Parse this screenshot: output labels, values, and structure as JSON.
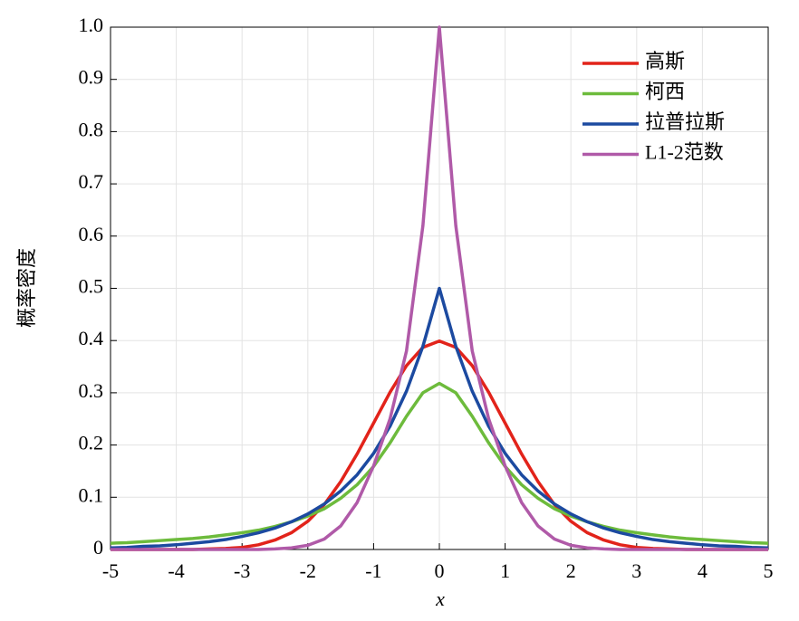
{
  "chart_data": {
    "type": "line",
    "x_label": "x",
    "y_label": "概率密度",
    "x": [
      -5,
      -4.75,
      -4.5,
      -4.25,
      -4,
      -3.75,
      -3.5,
      -3.25,
      -3,
      -2.75,
      -2.5,
      -2.25,
      -2,
      -1.75,
      -1.5,
      -1.25,
      -1,
      -0.75,
      -0.5,
      -0.25,
      0,
      0.25,
      0.5,
      0.75,
      1,
      1.25,
      1.5,
      1.75,
      2,
      2.25,
      2.5,
      2.75,
      3,
      3.25,
      3.5,
      3.75,
      4,
      4.25,
      4.5,
      4.75,
      5
    ],
    "series": [
      {
        "name": "高斯",
        "color": "#e2231a",
        "values": [
          0,
          0,
          0,
          0,
          0,
          0,
          0.001,
          0.002,
          0.004,
          0.009,
          0.018,
          0.032,
          0.054,
          0.086,
          0.13,
          0.183,
          0.242,
          0.301,
          0.352,
          0.387,
          0.399,
          0.387,
          0.352,
          0.301,
          0.242,
          0.183,
          0.13,
          0.086,
          0.054,
          0.032,
          0.018,
          0.009,
          0.004,
          0.002,
          0.001,
          0,
          0,
          0,
          0,
          0,
          0
        ]
      },
      {
        "name": "柯西",
        "color": "#6dbb3c",
        "values": [
          0.012,
          0.013,
          0.015,
          0.017,
          0.019,
          0.021,
          0.024,
          0.028,
          0.032,
          0.037,
          0.044,
          0.053,
          0.064,
          0.078,
          0.098,
          0.124,
          0.159,
          0.204,
          0.255,
          0.3,
          0.318,
          0.3,
          0.255,
          0.204,
          0.159,
          0.124,
          0.098,
          0.078,
          0.064,
          0.053,
          0.044,
          0.037,
          0.032,
          0.028,
          0.024,
          0.021,
          0.019,
          0.017,
          0.015,
          0.013,
          0.012
        ]
      },
      {
        "name": "拉普拉斯",
        "color": "#1c4aa0",
        "values": [
          0.003,
          0.004,
          0.006,
          0.007,
          0.009,
          0.012,
          0.015,
          0.019,
          0.025,
          0.032,
          0.041,
          0.053,
          0.068,
          0.087,
          0.112,
          0.143,
          0.184,
          0.236,
          0.303,
          0.389,
          0.5,
          0.389,
          0.303,
          0.236,
          0.184,
          0.143,
          0.112,
          0.087,
          0.068,
          0.053,
          0.041,
          0.032,
          0.025,
          0.019,
          0.015,
          0.012,
          0.009,
          0.007,
          0.006,
          0.004,
          0.003
        ]
      },
      {
        "name": "L1-2范数",
        "color": "#b05aa8",
        "values": [
          0,
          0,
          0,
          0,
          0,
          0,
          0,
          0,
          0,
          0,
          0.001,
          0.003,
          0.008,
          0.02,
          0.045,
          0.09,
          0.16,
          0.25,
          0.38,
          0.62,
          1,
          0.62,
          0.38,
          0.25,
          0.16,
          0.09,
          0.045,
          0.02,
          0.008,
          0.003,
          0.001,
          0,
          0,
          0,
          0,
          0,
          0,
          0,
          0,
          0,
          0
        ]
      }
    ],
    "xlim": [
      -5,
      5
    ],
    "xticks": [
      -5,
      -4,
      -3,
      -2,
      -1,
      0,
      1,
      2,
      3,
      4,
      5
    ],
    "ylim": [
      0,
      1
    ],
    "yticks": [
      0,
      0.1,
      0.2,
      0.3,
      0.4,
      0.5,
      0.6,
      0.7,
      0.8,
      0.9,
      {
        "value": 1,
        "label": "1.0"
      }
    ],
    "grid": true,
    "legend": "upper right"
  }
}
